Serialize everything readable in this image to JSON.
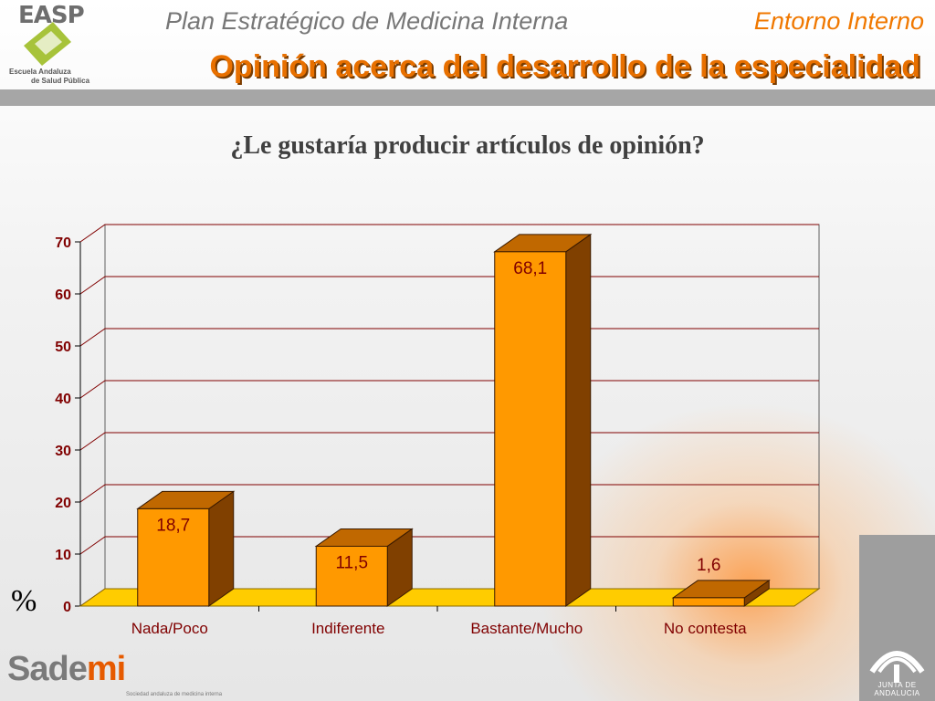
{
  "header": {
    "title": "Plan Estratégico de Medicina Interna",
    "section": "Entorno Interno",
    "subtitle": "Opinión acerca del desarrollo de la especialidad"
  },
  "logo": {
    "acronym": "EASP",
    "line1": "Escuela Andaluza",
    "line2": "de Salud Pública"
  },
  "question": "¿Le gustaría producir artículos de opinión?",
  "y_unit_label": "%",
  "chart_data": {
    "type": "bar",
    "title": "¿Le gustaría producir artículos de opinión?",
    "categories": [
      "Nada/Poco",
      "Indiferente",
      "Bastante/Mucho",
      "No contesta"
    ],
    "values": [
      18.7,
      11.5,
      68.1,
      1.6
    ],
    "value_labels": [
      "18,7",
      "11,5",
      "68,1",
      "1,6"
    ],
    "ylabel": "%",
    "ylim": [
      0,
      70
    ],
    "yticks": [
      0,
      10,
      20,
      30,
      40,
      50,
      60,
      70
    ],
    "grid": true,
    "legend": "none",
    "colors": {
      "bar_front": "#ff9900",
      "bar_side": "#804000",
      "bar_top": "#c06800",
      "floor": "#ffcc00",
      "grid": "#800000",
      "axis_text": "#800000",
      "category_text": "#800000"
    }
  },
  "footer": {
    "brand_a": "Sade",
    "brand_b": "mi",
    "brand_sub": "Sociedad andaluza de medicina interna",
    "junta": "JUNTA DE ANDALUCIA"
  }
}
